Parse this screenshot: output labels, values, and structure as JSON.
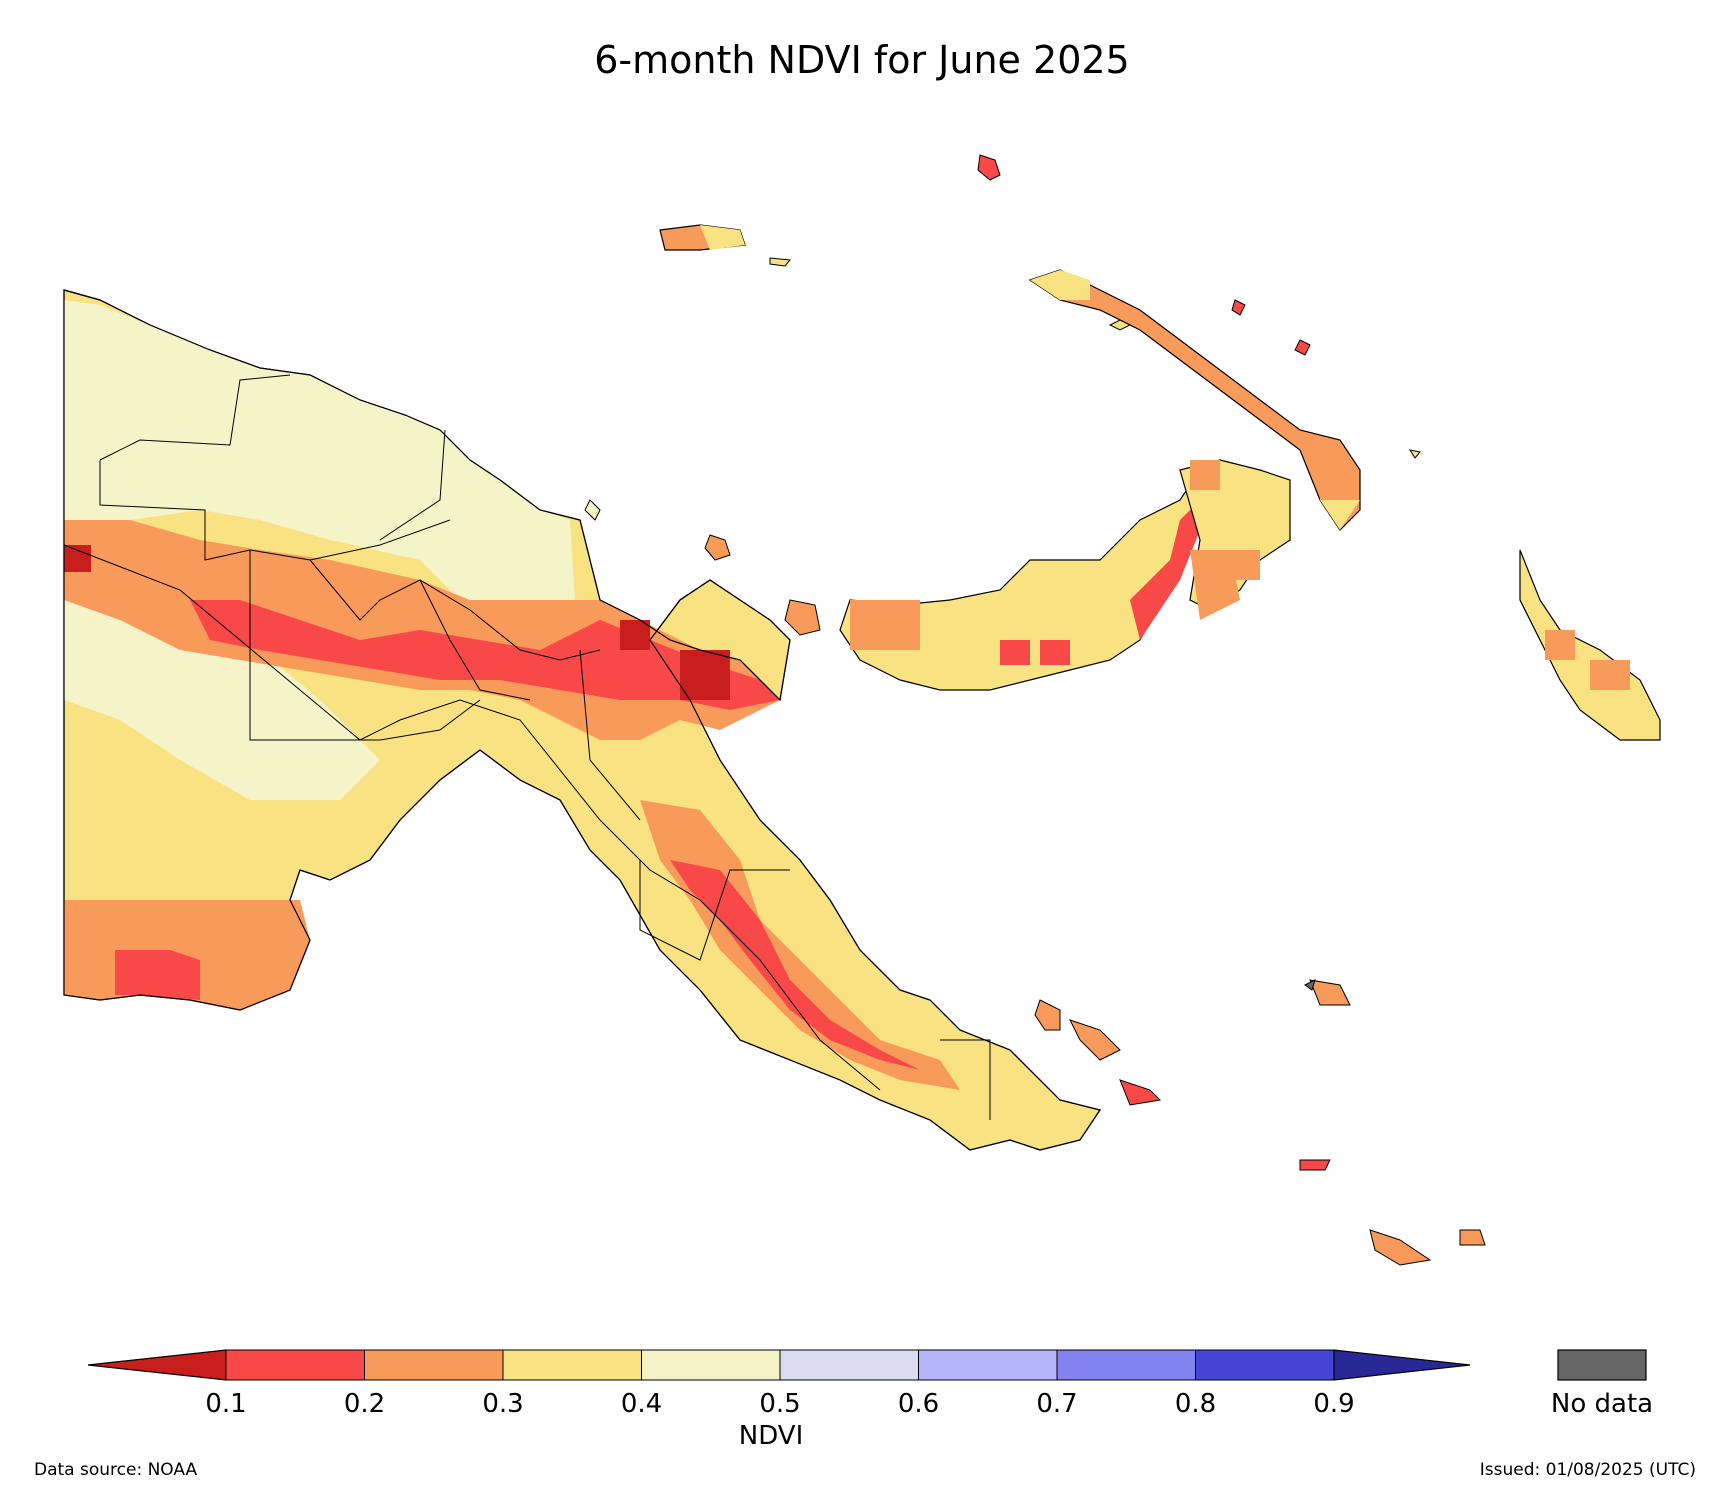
{
  "title": "6-month NDVI for June 2025",
  "legend": {
    "label": "NDVI",
    "ticks": [
      "0.1",
      "0.2",
      "0.3",
      "0.4",
      "0.5",
      "0.6",
      "0.7",
      "0.8",
      "0.9"
    ],
    "colors": [
      "#c81e1e",
      "#f84848",
      "#f89a5a",
      "#f8e282",
      "#f4f4c8",
      "#dcdcf0",
      "#b4b4f8",
      "#8282f0",
      "#4646d6",
      "#282896"
    ],
    "no_data_label": "No data",
    "no_data_color": "#666666"
  },
  "source": "Data source: NOAA",
  "issued": "Issued: 01/08/2025 (UTC)"
}
